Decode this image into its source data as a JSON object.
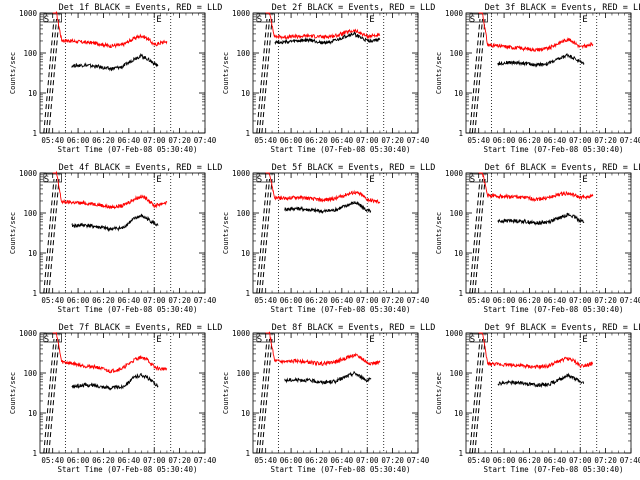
{
  "chart_data": [
    {
      "type": "line",
      "title": "Det 1f BLACK = Events, RED = LLD",
      "xlabel": "Start Time (07-Feb-08 05:30:40)",
      "ylabel": "Counts/sec",
      "yscale": "log",
      "ylim": [
        1,
        1000
      ],
      "y_ticks": [
        {
          "value": 1,
          "label": "1"
        },
        {
          "value": 10,
          "label": "10"
        },
        {
          "value": 100,
          "label": "100"
        },
        {
          "value": 1000,
          "label": "1000"
        }
      ],
      "x_ticks": [
        "05:40",
        "06:00",
        "06:20",
        "06:40",
        "07:00",
        "07:20",
        "07:40"
      ],
      "marker_labels": [
        "S",
        "E"
      ],
      "series": [
        {
          "color": "#ff0000",
          "x": [
            "05:40",
            "05:43",
            "05:47",
            "05:55",
            "06:05",
            "06:15",
            "06:25",
            "06:35",
            "06:45",
            "06:50",
            "06:55",
            "07:00",
            "07:05",
            "07:10"
          ],
          "y": [
            1000,
            1000,
            210,
            200,
            185,
            175,
            150,
            160,
            240,
            270,
            230,
            160,
            180,
            195
          ]
        },
        {
          "color": "#000000",
          "x": [
            "05:55",
            "06:05",
            "06:15",
            "06:25",
            "06:35",
            "06:45",
            "06:50",
            "06:55",
            "07:00",
            "07:03"
          ],
          "y": [
            48,
            50,
            46,
            40,
            45,
            75,
            85,
            70,
            55,
            48
          ]
        }
      ]
    },
    {
      "type": "line",
      "title": "Det 2f BLACK = Events, RED = LLD",
      "xlabel": "Start Time (07-Feb-08 05:30:40)",
      "ylabel": "Counts/sec",
      "yscale": "log",
      "ylim": [
        1,
        1000
      ],
      "y_ticks": [
        {
          "value": 1,
          "label": "1"
        },
        {
          "value": 10,
          "label": "10"
        },
        {
          "value": 100,
          "label": "100"
        },
        {
          "value": 1000,
          "label": "1000"
        }
      ],
      "x_ticks": [
        "05:40",
        "06:00",
        "06:20",
        "06:40",
        "07:00",
        "07:20",
        "07:40"
      ],
      "marker_labels": [
        "S",
        "E"
      ],
      "series": [
        {
          "color": "#ff0000",
          "x": [
            "05:40",
            "05:43",
            "05:47",
            "05:55",
            "06:05",
            "06:15",
            "06:25",
            "06:35",
            "06:45",
            "06:50",
            "06:55",
            "07:00",
            "07:05",
            "07:10"
          ],
          "y": [
            1000,
            1000,
            260,
            250,
            260,
            270,
            250,
            270,
            340,
            360,
            310,
            260,
            275,
            270
          ]
        },
        {
          "color": "#000000",
          "x": [
            "05:47",
            "05:55",
            "06:05",
            "06:15",
            "06:25",
            "06:35",
            "06:45",
            "06:50",
            "06:55",
            "07:00",
            "07:05",
            "07:10"
          ],
          "y": [
            190,
            185,
            200,
            210,
            180,
            200,
            280,
            300,
            240,
            200,
            210,
            215
          ]
        }
      ]
    },
    {
      "type": "line",
      "title": "Det 3f BLACK = Events, RED = LLD",
      "xlabel": "Start Time (07-Feb-08 05:30:40)",
      "ylabel": "Counts/sec",
      "yscale": "log",
      "ylim": [
        1,
        1000
      ],
      "y_ticks": [
        {
          "value": 1,
          "label": "1"
        },
        {
          "value": 10,
          "label": "10"
        },
        {
          "value": 100,
          "label": "100"
        },
        {
          "value": 1000,
          "label": "1000"
        }
      ],
      "x_ticks": [
        "05:40",
        "06:00",
        "06:20",
        "06:40",
        "07:00",
        "07:20",
        "07:40"
      ],
      "marker_labels": [
        "S",
        "E"
      ],
      "series": [
        {
          "color": "#ff0000",
          "x": [
            "05:40",
            "05:43",
            "05:47",
            "05:55",
            "06:05",
            "06:15",
            "06:25",
            "06:35",
            "06:45",
            "06:50",
            "06:55",
            "07:00",
            "07:05",
            "07:10"
          ],
          "y": [
            1000,
            1000,
            160,
            150,
            140,
            130,
            120,
            130,
            190,
            220,
            190,
            140,
            150,
            165
          ]
        },
        {
          "color": "#000000",
          "x": [
            "05:55",
            "06:05",
            "06:15",
            "06:25",
            "06:35",
            "06:45",
            "06:50",
            "06:55",
            "07:00",
            "07:03"
          ],
          "y": [
            55,
            58,
            56,
            50,
            55,
            75,
            90,
            75,
            60,
            55
          ]
        }
      ]
    },
    {
      "type": "line",
      "title": "Det 4f BLACK = Events, RED = LLD",
      "xlabel": "Start Time (07-Feb-08 05:30:40)",
      "ylabel": "Counts/sec",
      "yscale": "log",
      "ylim": [
        1,
        1000
      ],
      "y_ticks": [
        {
          "value": 1,
          "label": "1"
        },
        {
          "value": 10,
          "label": "10"
        },
        {
          "value": 100,
          "label": "100"
        },
        {
          "value": 1000,
          "label": "1000"
        }
      ],
      "x_ticks": [
        "05:40",
        "06:00",
        "06:20",
        "06:40",
        "07:00",
        "07:20",
        "07:40"
      ],
      "marker_labels": [
        "S",
        "E"
      ],
      "series": [
        {
          "color": "#ff0000",
          "x": [
            "05:40",
            "05:43",
            "05:47",
            "05:55",
            "06:05",
            "06:15",
            "06:25",
            "06:35",
            "06:45",
            "06:50",
            "06:55",
            "07:00",
            "07:05",
            "07:10"
          ],
          "y": [
            1000,
            1000,
            190,
            185,
            175,
            165,
            140,
            150,
            230,
            260,
            220,
            150,
            170,
            185
          ]
        },
        {
          "color": "#000000",
          "x": [
            "05:55",
            "06:05",
            "06:15",
            "06:25",
            "06:35",
            "06:45",
            "06:50",
            "06:55",
            "07:00",
            "07:03"
          ],
          "y": [
            48,
            50,
            45,
            40,
            42,
            75,
            85,
            70,
            55,
            48
          ]
        }
      ]
    },
    {
      "type": "line",
      "title": "Det 5f BLACK = Events, RED = LLD",
      "xlabel": "Start Time (07-Feb-08 05:30:40)",
      "ylabel": "Counts/sec",
      "yscale": "log",
      "ylim": [
        1,
        1000
      ],
      "y_ticks": [
        {
          "value": 1,
          "label": "1"
        },
        {
          "value": 10,
          "label": "10"
        },
        {
          "value": 100,
          "label": "100"
        },
        {
          "value": 1000,
          "label": "1000"
        }
      ],
      "x_ticks": [
        "05:40",
        "06:00",
        "06:20",
        "06:40",
        "07:00",
        "07:20",
        "07:40"
      ],
      "marker_labels": [
        "S",
        "E"
      ],
      "series": [
        {
          "color": "#ff0000",
          "x": [
            "05:40",
            "05:43",
            "05:47",
            "05:55",
            "06:05",
            "06:15",
            "06:25",
            "06:35",
            "06:45",
            "06:50",
            "06:55",
            "07:00",
            "07:05",
            "07:10"
          ],
          "y": [
            1000,
            1000,
            240,
            230,
            250,
            230,
            210,
            230,
            300,
            330,
            290,
            220,
            200,
            190
          ]
        },
        {
          "color": "#000000",
          "x": [
            "05:55",
            "06:05",
            "06:15",
            "06:25",
            "06:35",
            "06:45",
            "06:50",
            "06:55",
            "07:00",
            "07:03"
          ],
          "y": [
            125,
            130,
            120,
            110,
            120,
            160,
            185,
            150,
            115,
            110
          ]
        }
      ]
    },
    {
      "type": "line",
      "title": "Det 6f BLACK = Events, RED = LLD",
      "xlabel": "Start Time (07-Feb-08 05:30:40)",
      "ylabel": "Counts/sec",
      "yscale": "log",
      "ylim": [
        1,
        1000
      ],
      "y_ticks": [
        {
          "value": 1,
          "label": "1"
        },
        {
          "value": 10,
          "label": "10"
        },
        {
          "value": 100,
          "label": "100"
        },
        {
          "value": 1000,
          "label": "1000"
        }
      ],
      "x_ticks": [
        "05:40",
        "06:00",
        "06:20",
        "06:40",
        "07:00",
        "07:20",
        "07:40"
      ],
      "marker_labels": [
        "S",
        "E"
      ],
      "series": [
        {
          "color": "#ff0000",
          "x": [
            "05:40",
            "05:43",
            "05:47",
            "05:55",
            "06:05",
            "06:15",
            "06:25",
            "06:35",
            "06:45",
            "06:50",
            "06:55",
            "07:00",
            "07:05",
            "07:10"
          ],
          "y": [
            1000,
            1000,
            270,
            265,
            255,
            245,
            220,
            240,
            300,
            310,
            280,
            240,
            255,
            265
          ]
        },
        {
          "color": "#000000",
          "x": [
            "05:55",
            "06:05",
            "06:15",
            "06:25",
            "06:35",
            "06:45",
            "06:50",
            "06:55",
            "07:00",
            "07:03"
          ],
          "y": [
            62,
            65,
            62,
            56,
            60,
            78,
            92,
            80,
            65,
            60
          ]
        }
      ]
    },
    {
      "type": "line",
      "title": "Det 7f BLACK = Events, RED = LLD",
      "xlabel": "Start Time (07-Feb-08 05:30:40)",
      "ylabel": "Counts/sec",
      "yscale": "log",
      "ylim": [
        1,
        1000
      ],
      "y_ticks": [
        {
          "value": 1,
          "label": "1"
        },
        {
          "value": 10,
          "label": "10"
        },
        {
          "value": 100,
          "label": "100"
        },
        {
          "value": 1000,
          "label": "1000"
        }
      ],
      "x_ticks": [
        "05:40",
        "06:00",
        "06:20",
        "06:40",
        "07:00",
        "07:20",
        "07:40"
      ],
      "marker_labels": [
        "S",
        "E"
      ],
      "series": [
        {
          "color": "#ff0000",
          "x": [
            "05:40",
            "05:43",
            "05:47",
            "05:55",
            "06:05",
            "06:15",
            "06:25",
            "06:35",
            "06:45",
            "06:50",
            "06:55",
            "07:00",
            "07:05",
            "07:10"
          ],
          "y": [
            1000,
            1000,
            190,
            175,
            150,
            140,
            110,
            130,
            220,
            250,
            210,
            140,
            125,
            130
          ]
        },
        {
          "color": "#000000",
          "x": [
            "05:55",
            "06:05",
            "06:15",
            "06:25",
            "06:35",
            "06:45",
            "06:50",
            "06:55",
            "07:00",
            "07:03"
          ],
          "y": [
            45,
            50,
            48,
            42,
            45,
            80,
            90,
            75,
            55,
            48
          ]
        }
      ]
    },
    {
      "type": "line",
      "title": "Det 8f BLACK = Events, RED = LLD",
      "xlabel": "Start Time (07-Feb-08 05:30:40)",
      "ylabel": "Counts/sec",
      "yscale": "log",
      "ylim": [
        1,
        1000
      ],
      "y_ticks": [
        {
          "value": 1,
          "label": "1"
        },
        {
          "value": 10,
          "label": "10"
        },
        {
          "value": 100,
          "label": "100"
        },
        {
          "value": 1000,
          "label": "1000"
        }
      ],
      "x_ticks": [
        "05:40",
        "06:00",
        "06:20",
        "06:40",
        "07:00",
        "07:20",
        "07:40"
      ],
      "marker_labels": [
        "S",
        "E"
      ],
      "series": [
        {
          "color": "#ff0000",
          "x": [
            "05:40",
            "05:43",
            "05:47",
            "05:55",
            "06:05",
            "06:15",
            "06:25",
            "06:35",
            "06:45",
            "06:50",
            "06:55",
            "07:00",
            "07:05",
            "07:10"
          ],
          "y": [
            1000,
            1000,
            200,
            190,
            200,
            185,
            170,
            190,
            250,
            280,
            240,
            180,
            175,
            185
          ]
        },
        {
          "color": "#000000",
          "x": [
            "05:55",
            "06:05",
            "06:15",
            "06:25",
            "06:35",
            "06:45",
            "06:50",
            "06:55",
            "07:00",
            "07:03"
          ],
          "y": [
            65,
            68,
            65,
            58,
            62,
            85,
            100,
            80,
            65,
            70
          ]
        }
      ]
    },
    {
      "type": "line",
      "title": "Det 9f BLACK = Events, RED = LLD",
      "xlabel": "Start Time (07-Feb-08 05:30:40)",
      "ylabel": "Counts/sec",
      "yscale": "log",
      "ylim": [
        1,
        1000
      ],
      "y_ticks": [
        {
          "value": 1,
          "label": "1"
        },
        {
          "value": 10,
          "label": "10"
        },
        {
          "value": 100,
          "label": "100"
        },
        {
          "value": 1000,
          "label": "1000"
        }
      ],
      "x_ticks": [
        "05:40",
        "06:00",
        "06:20",
        "06:40",
        "07:00",
        "07:20",
        "07:40"
      ],
      "marker_labels": [
        "S",
        "E"
      ],
      "series": [
        {
          "color": "#ff0000",
          "x": [
            "05:40",
            "05:43",
            "05:47",
            "05:55",
            "06:05",
            "06:15",
            "06:25",
            "06:35",
            "06:45",
            "06:50",
            "06:55",
            "07:00",
            "07:05",
            "07:10"
          ],
          "y": [
            1000,
            1000,
            170,
            165,
            160,
            150,
            140,
            150,
            210,
            230,
            200,
            150,
            160,
            170
          ]
        },
        {
          "color": "#000000",
          "x": [
            "05:55",
            "06:05",
            "06:15",
            "06:25",
            "06:35",
            "06:45",
            "06:50",
            "06:55",
            "07:00",
            "07:03"
          ],
          "y": [
            55,
            58,
            56,
            50,
            52,
            72,
            88,
            75,
            60,
            55
          ]
        }
      ]
    }
  ]
}
